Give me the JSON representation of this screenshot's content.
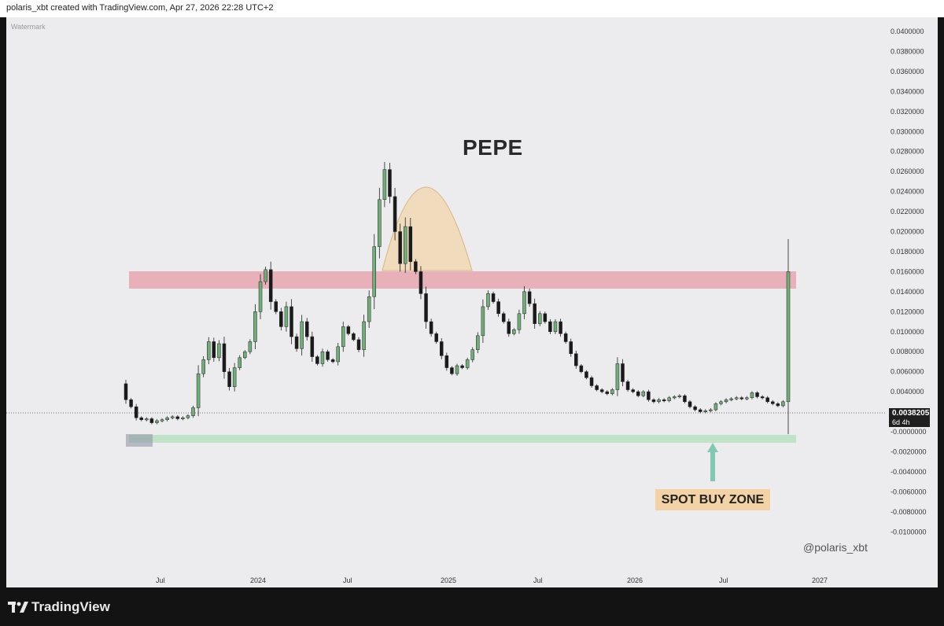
{
  "header": {
    "attribution": "polaris_xbt created with TradingView.com, Apr 27, 2026 22:28 UTC+2"
  },
  "chart": {
    "watermark": "Watermark",
    "title": "PEPE",
    "credit": "@polaris_xbt",
    "annotation": "SPOT BUY ZONE",
    "price_tag": {
      "price": "0.0038205",
      "countdown": "6d 4h"
    },
    "colors": {
      "up": "#6fae79",
      "down": "#1a1a1a",
      "resistance": "#e7a3ad",
      "support": "#b9e2bf",
      "dome": "#f3d7b0",
      "arrow": "#7fc9b3"
    }
  },
  "chart_data": {
    "type": "candlestick",
    "title": "PEPE",
    "y_ticks": [
      "0.0400000",
      "0.0380000",
      "0.0360000",
      "0.0340000",
      "0.0320000",
      "0.0300000",
      "0.0280000",
      "0.0260000",
      "0.0240000",
      "0.0220000",
      "0.0200000",
      "0.0180000",
      "0.0160000",
      "0.0140000",
      "0.0120000",
      "0.0100000",
      "0.0080000",
      "0.0060000",
      "0.0040000",
      "0.0020000",
      "-0.0000000",
      "-0.0020000",
      "-0.0040000",
      "-0.0060000",
      "-0.0080000",
      "-0.0100000"
    ],
    "x_ticks": [
      "Jul",
      "2024",
      "Jul",
      "2025",
      "Jul",
      "2026",
      "Jul",
      "2027"
    ],
    "last_price": 0.0038205,
    "resistance_zone": [
      0.0157,
      0.0174
    ],
    "support_zone": [
      0.001,
      0.0018
    ],
    "price_path": [
      [
        0.0048,
        0.0032
      ],
      [
        0.0032,
        0.0025
      ],
      [
        0.0025,
        0.0014
      ],
      [
        0.0014,
        0.0012
      ],
      [
        0.0012,
        0.0013
      ],
      [
        0.0013,
        0.0009
      ],
      [
        0.0009,
        0.0011
      ],
      [
        0.0011,
        0.0012
      ],
      [
        0.0012,
        0.0014
      ],
      [
        0.0014,
        0.0015
      ],
      [
        0.0015,
        0.0013
      ],
      [
        0.0013,
        0.0014
      ],
      [
        0.0014,
        0.0016
      ],
      [
        0.0016,
        0.0024
      ],
      [
        0.0024,
        0.0058
      ],
      [
        0.0058,
        0.0072
      ],
      [
        0.0072,
        0.009
      ],
      [
        0.009,
        0.0074
      ],
      [
        0.0074,
        0.0088
      ],
      [
        0.0088,
        0.006
      ],
      [
        0.006,
        0.0045
      ],
      [
        0.0045,
        0.0064
      ],
      [
        0.0064,
        0.0074
      ],
      [
        0.0074,
        0.008
      ],
      [
        0.008,
        0.009
      ],
      [
        0.009,
        0.012
      ],
      [
        0.012,
        0.015
      ],
      [
        0.015,
        0.0162
      ],
      [
        0.0162,
        0.013
      ],
      [
        0.013,
        0.012
      ],
      [
        0.012,
        0.0105
      ],
      [
        0.0105,
        0.0125
      ],
      [
        0.0125,
        0.0095
      ],
      [
        0.0095,
        0.0083
      ],
      [
        0.0083,
        0.011
      ],
      [
        0.011,
        0.0095
      ],
      [
        0.0095,
        0.0075
      ],
      [
        0.0075,
        0.0068
      ],
      [
        0.0068,
        0.008
      ],
      [
        0.008,
        0.0072
      ],
      [
        0.0072,
        0.007
      ],
      [
        0.007,
        0.0085
      ],
      [
        0.0085,
        0.0105
      ],
      [
        0.0105,
        0.0098
      ],
      [
        0.0098,
        0.0092
      ],
      [
        0.0092,
        0.0082
      ],
      [
        0.0082,
        0.011
      ],
      [
        0.011,
        0.0135
      ],
      [
        0.0135,
        0.0185
      ],
      [
        0.0185,
        0.0232
      ],
      [
        0.0232,
        0.0262
      ],
      [
        0.0262,
        0.0235
      ],
      [
        0.0235,
        0.02
      ],
      [
        0.02,
        0.0168
      ],
      [
        0.0168,
        0.0205
      ],
      [
        0.0205,
        0.017
      ],
      [
        0.017,
        0.016
      ],
      [
        0.016,
        0.0138
      ],
      [
        0.0138,
        0.011
      ],
      [
        0.011,
        0.0098
      ],
      [
        0.0098,
        0.009
      ],
      [
        0.009,
        0.0076
      ],
      [
        0.0076,
        0.0064
      ],
      [
        0.0064,
        0.0058
      ],
      [
        0.0058,
        0.0066
      ],
      [
        0.0066,
        0.0064
      ],
      [
        0.0064,
        0.0072
      ],
      [
        0.0072,
        0.0082
      ],
      [
        0.0082,
        0.0096
      ],
      [
        0.0096,
        0.0125
      ],
      [
        0.0125,
        0.0138
      ],
      [
        0.0138,
        0.013
      ],
      [
        0.013,
        0.0118
      ],
      [
        0.0118,
        0.011
      ],
      [
        0.011,
        0.0098
      ],
      [
        0.0098,
        0.0102
      ],
      [
        0.0102,
        0.0118
      ],
      [
        0.0118,
        0.014
      ],
      [
        0.014,
        0.0128
      ],
      [
        0.0128,
        0.0108
      ],
      [
        0.0108,
        0.0118
      ],
      [
        0.0118,
        0.011
      ],
      [
        0.011,
        0.01
      ],
      [
        0.01,
        0.011
      ],
      [
        0.011,
        0.0098
      ],
      [
        0.0098,
        0.009
      ],
      [
        0.009,
        0.0078
      ],
      [
        0.0078,
        0.0066
      ],
      [
        0.0066,
        0.006
      ],
      [
        0.006,
        0.0054
      ],
      [
        0.0054,
        0.0046
      ],
      [
        0.0046,
        0.0042
      ],
      [
        0.0042,
        0.004
      ],
      [
        0.004,
        0.0038
      ],
      [
        0.0038,
        0.0042
      ],
      [
        0.0042,
        0.0068
      ],
      [
        0.0068,
        0.005
      ],
      [
        0.005,
        0.0042
      ],
      [
        0.0042,
        0.004
      ],
      [
        0.004,
        0.0036
      ],
      [
        0.0036,
        0.004
      ],
      [
        0.004,
        0.0032
      ],
      [
        0.0032,
        0.003
      ],
      [
        0.003,
        0.0032
      ],
      [
        0.0032,
        0.0031
      ],
      [
        0.0031,
        0.0034
      ],
      [
        0.0034,
        0.0035
      ],
      [
        0.0035,
        0.0036
      ],
      [
        0.0036,
        0.003
      ],
      [
        0.003,
        0.0025
      ],
      [
        0.0025,
        0.0022
      ],
      [
        0.0022,
        0.002
      ],
      [
        0.002,
        0.0021
      ],
      [
        0.0021,
        0.0022
      ],
      [
        0.0022,
        0.0028
      ],
      [
        0.0028,
        0.003
      ],
      [
        0.003,
        0.0032
      ],
      [
        0.0032,
        0.0033
      ],
      [
        0.0033,
        0.0034
      ],
      [
        0.0034,
        0.0033
      ],
      [
        0.0033,
        0.0034
      ],
      [
        0.0034,
        0.0039
      ],
      [
        0.0039,
        0.0035
      ],
      [
        0.0035,
        0.0034
      ],
      [
        0.0034,
        0.003
      ],
      [
        0.003,
        0.0028
      ],
      [
        0.0028,
        0.0026
      ],
      [
        0.0026,
        0.003
      ],
      [
        0.003,
        0.016
      ]
    ]
  }
}
